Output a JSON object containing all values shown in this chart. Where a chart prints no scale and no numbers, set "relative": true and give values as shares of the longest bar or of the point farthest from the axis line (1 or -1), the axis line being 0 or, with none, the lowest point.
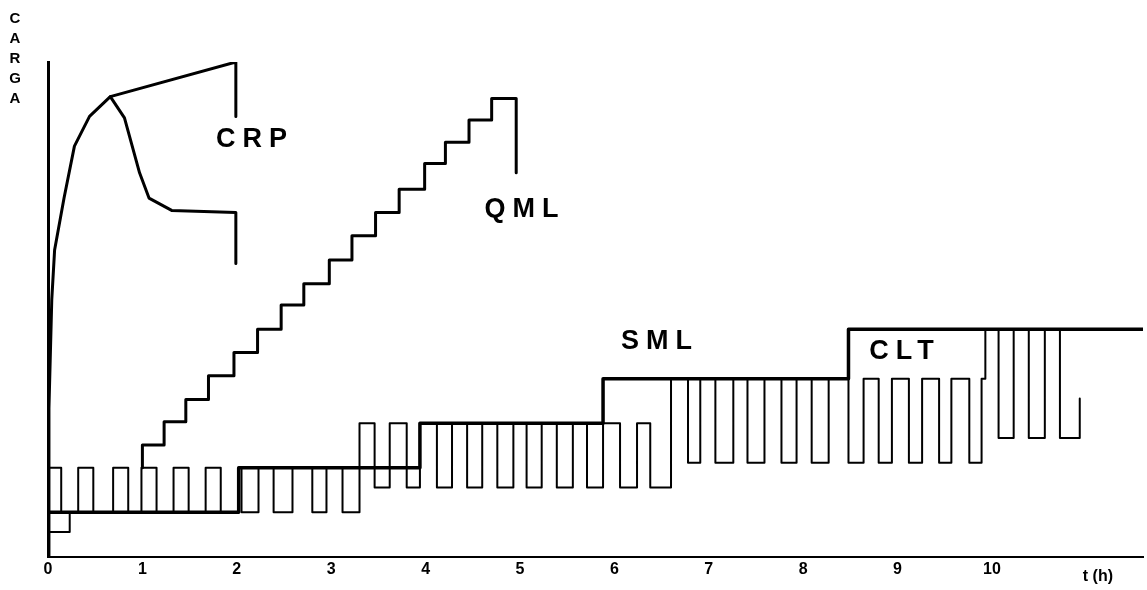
{
  "chart_data": {
    "type": "line",
    "relative": true,
    "ylabel": "CARGA",
    "xlabel": "t (h)",
    "xlim": [
      0,
      11.6
    ],
    "xticks": [
      0,
      1,
      2,
      3,
      4,
      5,
      6,
      7,
      8,
      9,
      10
    ],
    "grid": false,
    "legend": false,
    "marker": "none",
    "line_style": "solid",
    "series": [
      {
        "name": "CRP",
        "color": "#000000",
        "x": [
          0,
          0.01,
          0.04,
          0.07,
          0.17,
          0.28,
          0.44,
          0.66,
          1.99,
          1.99
        ],
        "values": [
          0,
          0.3,
          0.52,
          0.62,
          0.725,
          0.83,
          0.89,
          0.93,
          1.0,
          0.89
        ]
      },
      {
        "color": "#000000",
        "x": [
          0.66,
          0.81,
          0.97,
          1.07,
          1.31,
          1.99,
          1.99
        ],
        "values": [
          0.93,
          0.887,
          0.776,
          0.725,
          0.7,
          0.696,
          0.593
        ]
      },
      {
        "name": "QML",
        "color": "#000000",
        "x": [
          1.0,
          1.0,
          1.23,
          1.23,
          1.46,
          1.46,
          1.7,
          1.7,
          1.97,
          1.97,
          2.22,
          2.22,
          2.47,
          2.47,
          2.71,
          2.71,
          2.98,
          2.98,
          3.22,
          3.22,
          3.47,
          3.47,
          3.72,
          3.72,
          3.99,
          3.99,
          4.21,
          4.21,
          4.46,
          4.46,
          4.7,
          4.7,
          4.96,
          4.96
        ],
        "values": [
          0.18,
          0.226,
          0.226,
          0.273,
          0.273,
          0.318,
          0.318,
          0.366,
          0.366,
          0.413,
          0.413,
          0.46,
          0.46,
          0.509,
          0.509,
          0.552,
          0.552,
          0.6,
          0.6,
          0.649,
          0.649,
          0.696,
          0.696,
          0.743,
          0.743,
          0.795,
          0.795,
          0.838,
          0.838,
          0.883,
          0.883,
          0.926,
          0.926,
          0.776
        ]
      },
      {
        "name": "SML",
        "color": "#000000",
        "x": [
          0,
          2.02,
          2.02,
          3.94,
          3.94,
          5.88,
          5.88,
          8.48,
          8.48,
          11.6
        ],
        "values": [
          0.09,
          0.09,
          0.18,
          0.18,
          0.27,
          0.27,
          0.36,
          0.36,
          0.46,
          0.46
        ]
      },
      {
        "name": "CLT",
        "color": "#000000",
        "x": [
          0,
          0.23,
          0.23,
          0,
          0,
          0.14,
          0.14,
          0.32,
          0.32,
          0.48,
          0.48,
          0.69,
          0.69,
          0.85,
          0.85,
          0.99,
          0.99,
          1.15,
          1.15,
          1.33,
          1.33,
          1.49,
          1.49,
          1.67,
          1.67,
          1.83,
          1.83,
          2.02,
          2.02,
          2.05,
          2.05,
          2.23,
          2.23,
          2.39,
          2.39,
          2.59,
          2.59,
          2.8,
          2.8,
          2.95,
          2.95,
          3.12,
          3.12,
          3.3,
          3.3,
          3.46,
          3.46,
          3.62,
          3.62,
          3.8,
          3.8,
          3.94,
          3.94,
          4.12,
          4.12,
          4.28,
          4.28,
          4.44,
          4.44,
          4.6,
          4.6,
          4.76,
          4.76,
          4.93,
          4.93,
          5.07,
          5.07,
          5.23,
          5.23,
          5.39,
          5.39,
          5.56,
          5.56,
          5.71,
          5.71,
          5.88,
          5.88,
          6.06,
          6.06,
          6.24,
          6.24,
          6.38,
          6.38,
          6.6,
          6.6,
          6.78,
          6.78,
          6.91,
          6.91,
          7.07,
          7.07,
          7.26,
          7.26,
          7.41,
          7.41,
          7.59,
          7.59,
          7.77,
          7.77,
          7.93,
          7.93,
          8.09,
          8.09,
          8.27,
          8.27,
          8.48,
          8.48,
          8.64,
          8.64,
          8.8,
          8.8,
          8.94,
          8.94,
          9.12,
          9.12,
          9.26,
          9.26,
          9.44,
          9.44,
          9.57,
          9.57,
          9.76,
          9.76,
          9.89,
          9.89,
          9.93,
          9.93,
          10.07,
          10.07,
          10.23,
          10.23,
          10.39,
          10.39,
          10.56,
          10.56,
          10.72,
          10.72,
          10.93,
          10.93
        ],
        "values": [
          0.05,
          0.05,
          0.09,
          0.09,
          0.18,
          0.18,
          0.09,
          0.09,
          0.18,
          0.18,
          0.09,
          0.09,
          0.18,
          0.18,
          0.09,
          0.09,
          0.18,
          0.18,
          0.09,
          0.09,
          0.18,
          0.18,
          0.09,
          0.09,
          0.18,
          0.18,
          0.09,
          0.09,
          0.18,
          0.18,
          0.09,
          0.09,
          0.18,
          0.18,
          0.09,
          0.09,
          0.18,
          0.18,
          0.09,
          0.09,
          0.18,
          0.18,
          0.09,
          0.09,
          0.27,
          0.27,
          0.14,
          0.14,
          0.27,
          0.27,
          0.14,
          0.14,
          0.27,
          0.27,
          0.14,
          0.14,
          0.27,
          0.27,
          0.14,
          0.14,
          0.27,
          0.27,
          0.14,
          0.14,
          0.27,
          0.27,
          0.14,
          0.14,
          0.27,
          0.27,
          0.14,
          0.14,
          0.27,
          0.27,
          0.14,
          0.14,
          0.27,
          0.27,
          0.14,
          0.14,
          0.27,
          0.27,
          0.14,
          0.14,
          0.36,
          0.36,
          0.19,
          0.19,
          0.36,
          0.36,
          0.19,
          0.19,
          0.36,
          0.36,
          0.19,
          0.19,
          0.36,
          0.36,
          0.19,
          0.19,
          0.36,
          0.36,
          0.19,
          0.19,
          0.36,
          0.36,
          0.19,
          0.19,
          0.36,
          0.36,
          0.19,
          0.19,
          0.36,
          0.36,
          0.19,
          0.19,
          0.36,
          0.36,
          0.19,
          0.19,
          0.36,
          0.36,
          0.19,
          0.19,
          0.36,
          0.36,
          0.46,
          0.46,
          0.24,
          0.24,
          0.46,
          0.46,
          0.24,
          0.24,
          0.46,
          0.46,
          0.24,
          0.24,
          0.32
        ]
      }
    ]
  }
}
